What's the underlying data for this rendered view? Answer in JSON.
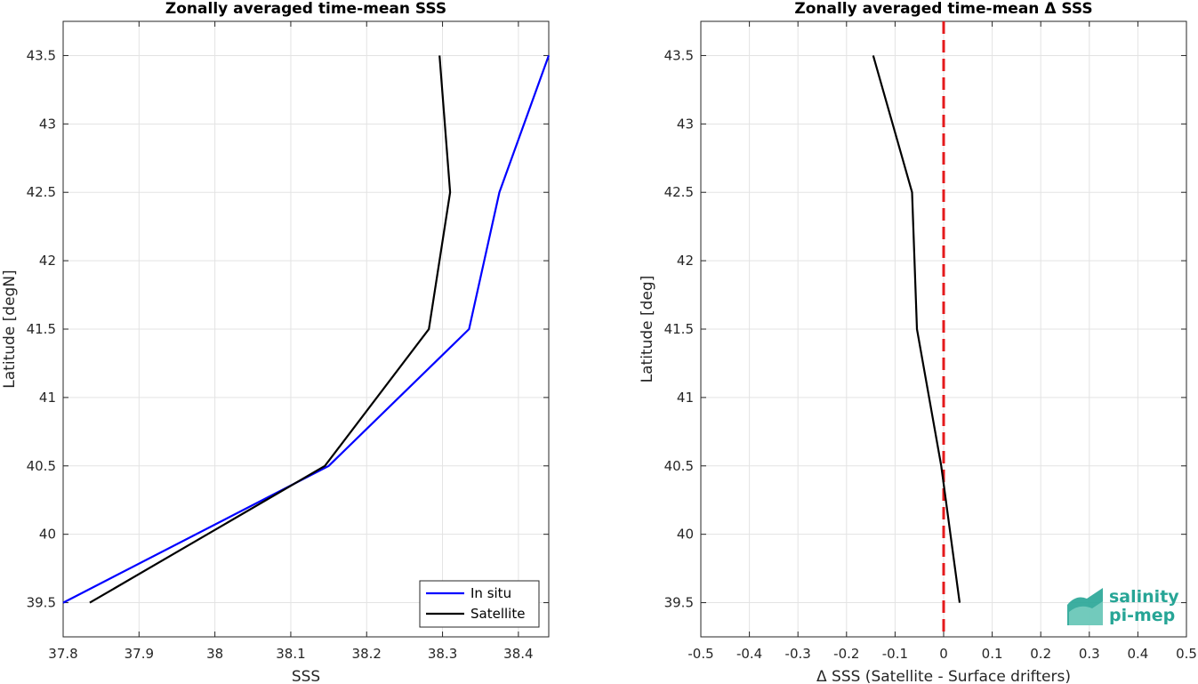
{
  "chart_data": [
    {
      "type": "line",
      "title": "Zonally averaged time-mean SSS",
      "xlabel": "SSS",
      "ylabel": "Latitude [degN]",
      "xlim": [
        37.8,
        38.44
      ],
      "ylim": [
        39.25,
        43.75
      ],
      "xticks": [
        37.8,
        37.9,
        38.0,
        38.1,
        38.2,
        38.3,
        38.4
      ],
      "xtick_labels": [
        "37.8",
        "37.9",
        "38",
        "38.1",
        "38.2",
        "38.3",
        "38.4"
      ],
      "yticks": [
        39.5,
        40,
        40.5,
        41,
        41.5,
        42,
        42.5,
        43,
        43.5
      ],
      "ytick_labels": [
        "39.5",
        "40",
        "40.5",
        "41",
        "41.5",
        "42",
        "42.5",
        "43",
        "43.5"
      ],
      "grid": true,
      "legend_position": "bottom-right",
      "series": [
        {
          "name": "In situ",
          "color": "#0000ff",
          "x": [
            37.8,
            38.15,
            38.335,
            38.375,
            38.44
          ],
          "y": [
            39.5,
            40.5,
            41.5,
            42.5,
            43.5
          ]
        },
        {
          "name": "Satellite",
          "color": "#000000",
          "x": [
            37.835,
            38.145,
            38.282,
            38.31,
            38.296
          ],
          "y": [
            39.5,
            40.5,
            41.5,
            42.5,
            43.5
          ]
        }
      ]
    },
    {
      "type": "line",
      "title": "Zonally averaged time-mean Δ SSS",
      "xlabel": "Δ SSS (Satellite - Surface drifters)",
      "ylabel": "Latitude [deg]",
      "xlim": [
        -0.5,
        0.5
      ],
      "ylim": [
        39.25,
        43.75
      ],
      "xticks": [
        -0.5,
        -0.4,
        -0.3,
        -0.2,
        -0.1,
        0,
        0.1,
        0.2,
        0.3,
        0.4,
        0.5
      ],
      "xtick_labels": [
        "-0.5",
        "-0.4",
        "-0.3",
        "-0.2",
        "-0.1",
        "0",
        "0.1",
        "0.2",
        "0.3",
        "0.4",
        "0.5"
      ],
      "yticks": [
        39.5,
        40,
        40.5,
        41,
        41.5,
        42,
        42.5,
        43,
        43.5
      ],
      "ytick_labels": [
        "39.5",
        "40",
        "40.5",
        "41",
        "41.5",
        "42",
        "42.5",
        "43",
        "43.5"
      ],
      "grid": true,
      "reference_line": {
        "x": 0,
        "color": "#e41a1c",
        "style": "dashed"
      },
      "series": [
        {
          "color": "#000000",
          "x": [
            0.033,
            -0.005,
            -0.055,
            -0.065,
            -0.145
          ],
          "y": [
            39.5,
            40.5,
            41.5,
            42.5,
            43.5
          ]
        }
      ]
    }
  ],
  "logo": {
    "line1": "salinity",
    "line2": "pi-mep"
  }
}
